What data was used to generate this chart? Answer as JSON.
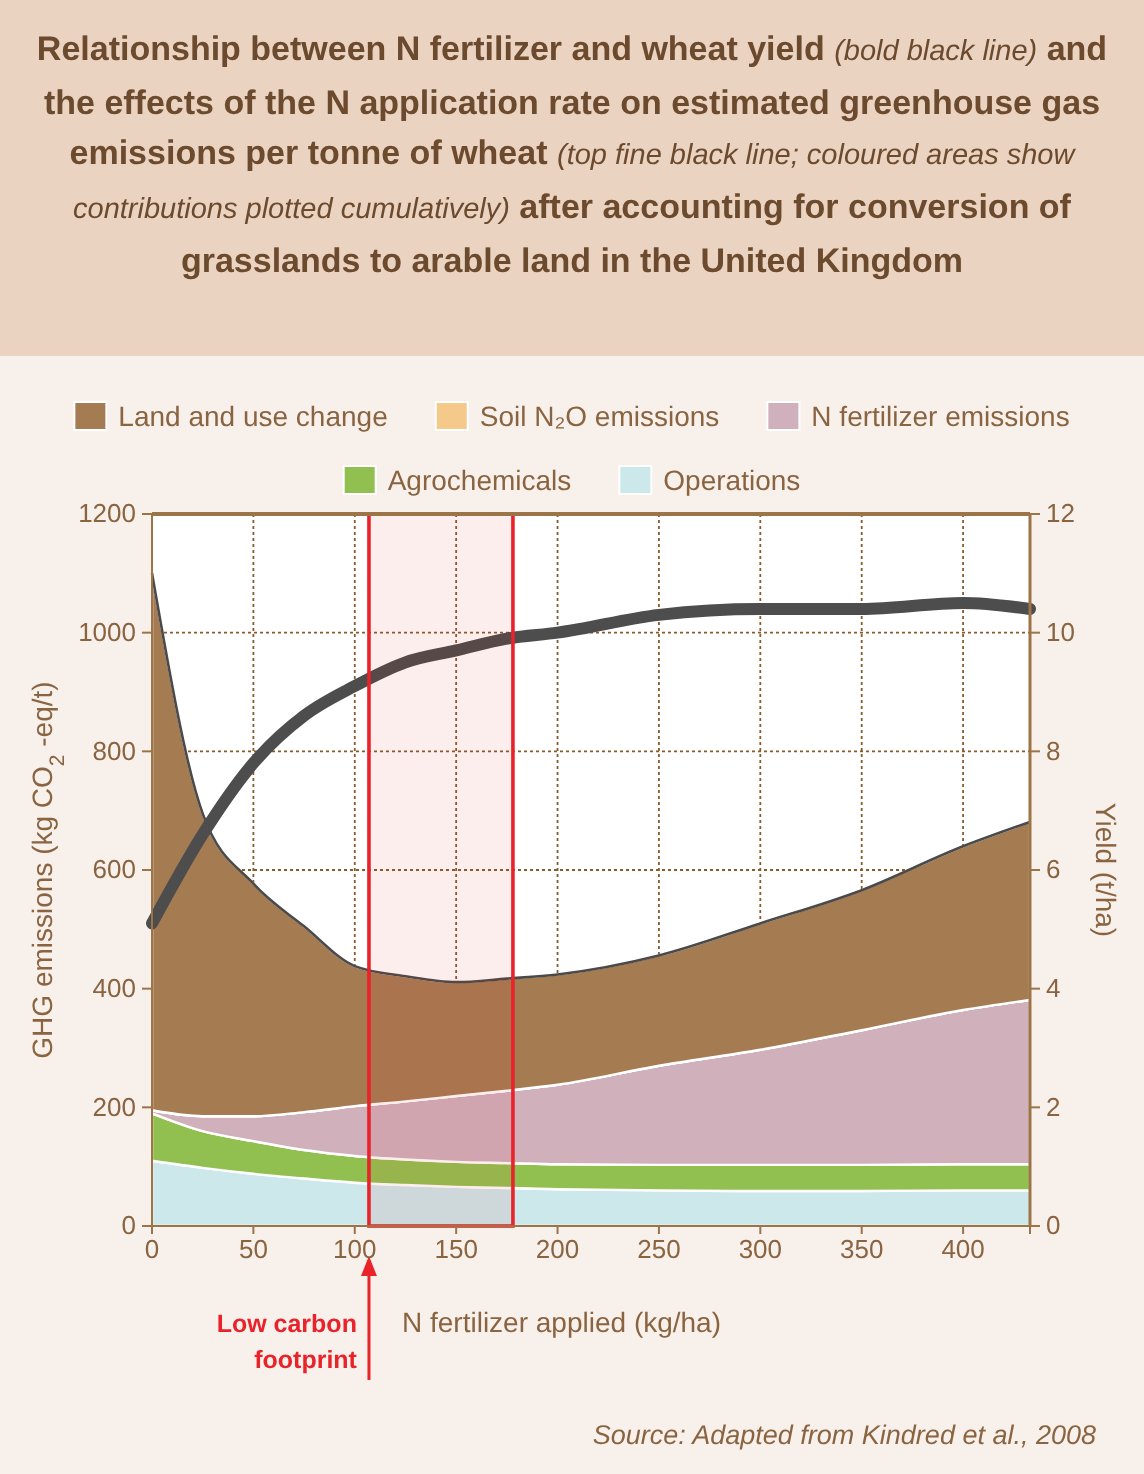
{
  "chart_data": {
    "type": "area",
    "stacked": true,
    "title": "Relationship between N fertilizer and wheat yield (bold black line) and the effects of the N application rate on estimated greenhouse gas emissions per tonne of wheat (top fine black line; coloured areas show contributions plotted cumulatively) after accounting for conversion of grasslands to arable land in the United Kingdom",
    "xlabel": "N fertilizer applied (kg/ha)",
    "ylabel": "GHG emissions (kg CO$_{2}$ -eq/t)",
    "y2label": "Yield (t/ha)",
    "x": [
      0,
      25,
      50,
      75,
      100,
      125,
      150,
      175,
      200,
      250,
      300,
      350,
      400,
      433
    ],
    "series": [
      {
        "name": "Operations",
        "color": "#cde8ea",
        "values": [
          110,
          98,
          88,
          80,
          73,
          69,
          66,
          64,
          62,
          60,
          59,
          59,
          60,
          60
        ]
      },
      {
        "name": "Agrochemicals",
        "color": "#92c050",
        "values": [
          80,
          62,
          55,
          48,
          45,
          43,
          42,
          42,
          42,
          43,
          44,
          44,
          44,
          44
        ]
      },
      {
        "name": "N fertilizer emissions",
        "color": "#cfb0bb",
        "values": [
          5,
          25,
          42,
          64,
          84,
          98,
          111,
          122,
          134,
          167,
          194,
          227,
          260,
          277
        ]
      },
      {
        "name": "Soil N₂O emissions",
        "color": "#f5c98a",
        "values": [
          0,
          0,
          0,
          0,
          0,
          0,
          0,
          0,
          0,
          0,
          0,
          0,
          0,
          0
        ]
      },
      {
        "name": "Land and use change",
        "color": "#a57b52",
        "values": [
          905,
          510,
          392,
          313,
          236,
          211,
          192,
          189,
          186,
          186,
          213,
          236,
          276,
          300
        ]
      },
      {
        "type": "line",
        "axis": "y2",
        "color": "#4d4d4d",
        "values": [
          5.1,
          6.6,
          7.8,
          8.6,
          9.1,
          9.5,
          9.7,
          9.9,
          10.0,
          10.3,
          10.4,
          10.4,
          10.5,
          10.4
        ]
      }
    ],
    "xlim": [
      0,
      433
    ],
    "xticks": [
      0,
      50,
      100,
      150,
      200,
      250,
      300,
      350,
      400
    ],
    "ylim": [
      0,
      1200
    ],
    "yticks": [
      0,
      200,
      400,
      600,
      800,
      1000,
      1200
    ],
    "y2lim": [
      0,
      12
    ],
    "y2ticks": [
      0,
      2,
      4,
      6,
      8,
      10,
      12
    ],
    "bands": [
      {
        "axis": "x",
        "from": 107,
        "to": 178,
        "label": "Low carbon footprint",
        "color": "#e8232a"
      }
    ],
    "grid": true,
    "legend": "top",
    "annotations": [
      "Source: Adapted from Kindred et al., 2008"
    ]
  }
}
